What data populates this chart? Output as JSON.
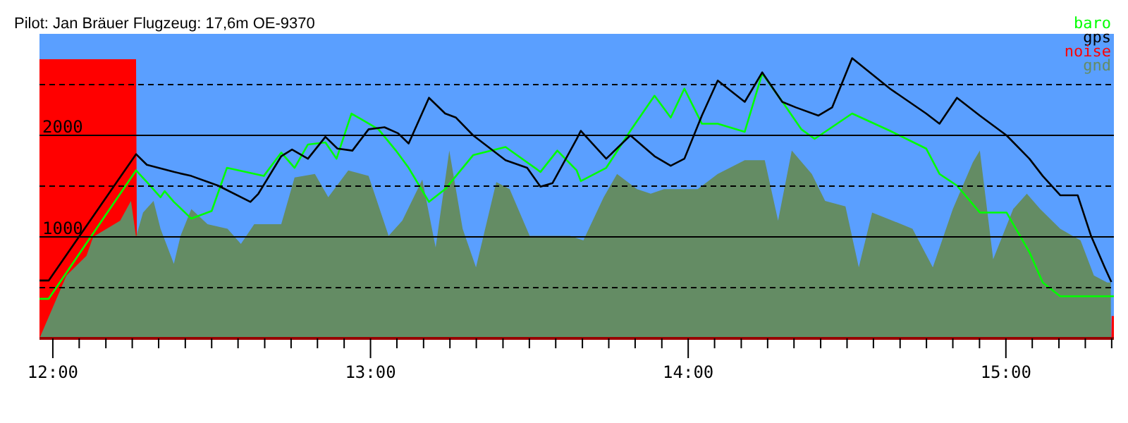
{
  "chart_data": {
    "type": "line",
    "title": "Pilot: Jan Bräuer Flugzeug: 17,6m OE-9370",
    "xlim": [
      11.958,
      15.34
    ],
    "ylim": [
      0,
      3000
    ],
    "xticks": [
      {
        "value": 12,
        "label": "12:00"
      },
      {
        "value": 12.083,
        "label": null
      },
      {
        "value": 12.167,
        "label": null
      },
      {
        "value": 12.25,
        "label": null
      },
      {
        "value": 12.333,
        "label": null
      },
      {
        "value": 12.417,
        "label": null
      },
      {
        "value": 12.5,
        "label": null
      },
      {
        "value": 12.583,
        "label": null
      },
      {
        "value": 12.667,
        "label": null
      },
      {
        "value": 12.75,
        "label": null
      },
      {
        "value": 12.833,
        "label": null
      },
      {
        "value": 12.917,
        "label": null
      },
      {
        "value": 13,
        "label": "13:00"
      },
      {
        "value": 13.083,
        "label": null
      },
      {
        "value": 13.167,
        "label": null
      },
      {
        "value": 13.25,
        "label": null
      },
      {
        "value": 13.333,
        "label": null
      },
      {
        "value": 13.417,
        "label": null
      },
      {
        "value": 13.5,
        "label": null
      },
      {
        "value": 13.583,
        "label": null
      },
      {
        "value": 13.667,
        "label": null
      },
      {
        "value": 13.75,
        "label": null
      },
      {
        "value": 13.833,
        "label": null
      },
      {
        "value": 13.917,
        "label": null
      },
      {
        "value": 14,
        "label": "14:00"
      },
      {
        "value": 14.083,
        "label": null
      },
      {
        "value": 14.167,
        "label": null
      },
      {
        "value": 14.25,
        "label": null
      },
      {
        "value": 14.333,
        "label": null
      },
      {
        "value": 14.417,
        "label": null
      },
      {
        "value": 14.5,
        "label": null
      },
      {
        "value": 14.583,
        "label": null
      },
      {
        "value": 14.667,
        "label": null
      },
      {
        "value": 14.75,
        "label": null
      },
      {
        "value": 14.833,
        "label": null
      },
      {
        "value": 14.917,
        "label": null
      },
      {
        "value": 15,
        "label": "15:00"
      },
      {
        "value": 15.083,
        "label": null
      },
      {
        "value": 15.167,
        "label": null
      },
      {
        "value": 15.25,
        "label": null
      },
      {
        "value": 15.333,
        "label": null
      }
    ],
    "yticks": [
      {
        "value": 500,
        "label": null
      },
      1000,
      {
        "value": 1500,
        "label": null
      },
      2000,
      {
        "value": 2500,
        "label": null
      }
    ],
    "grid": "y",
    "legend": "top right",
    "marker": "none",
    "series": [
      {
        "name": "baro",
        "color": "#00ff00",
        "x": [
          11.958,
          11.987,
          12.262,
          12.296,
          12.339,
          12.352,
          12.381,
          12.436,
          12.5,
          12.548,
          12.664,
          12.719,
          12.761,
          12.803,
          12.858,
          12.893,
          12.94,
          13.025,
          13.08,
          13.12,
          13.184,
          13.235,
          13.323,
          13.425,
          13.535,
          13.588,
          13.649,
          13.662,
          13.742,
          13.818,
          13.894,
          13.945,
          13.988,
          14.043,
          14.093,
          14.178,
          14.233,
          14.301,
          14.356,
          14.398,
          14.516,
          14.635,
          14.749,
          14.791,
          14.846,
          14.918,
          15.002,
          15.074,
          15.116,
          15.171,
          15.226,
          15.268,
          15.311,
          15.325,
          15.34
        ],
        "values": [
          390,
          390,
          1655,
          1540,
          1390,
          1450,
          1345,
          1180,
          1255,
          1680,
          1600,
          1830,
          1680,
          1910,
          1930,
          1770,
          2215,
          2060,
          1850,
          1680,
          1345,
          1470,
          1805,
          1885,
          1640,
          1850,
          1655,
          1550,
          1680,
          2045,
          2390,
          2175,
          2460,
          2115,
          2115,
          2035,
          2610,
          2310,
          2060,
          1965,
          2215,
          2045,
          1870,
          1620,
          1505,
          1240,
          1240,
          850,
          550,
          415,
          415,
          415,
          415,
          415,
          415
        ]
      },
      {
        "name": "gps",
        "color": "#000000",
        "x": [
          11.958,
          11.987,
          12.262,
          12.296,
          12.381,
          12.436,
          12.52,
          12.622,
          12.647,
          12.719,
          12.753,
          12.803,
          12.858,
          12.896,
          12.943,
          12.994,
          13.044,
          13.087,
          13.12,
          13.184,
          13.235,
          13.269,
          13.323,
          13.425,
          13.493,
          13.535,
          13.573,
          13.649,
          13.662,
          13.742,
          13.818,
          13.894,
          13.945,
          13.988,
          14.043,
          14.093,
          14.178,
          14.233,
          14.296,
          14.339,
          14.41,
          14.453,
          14.516,
          14.635,
          14.749,
          14.791,
          14.846,
          14.918,
          15.002,
          15.074,
          15.116,
          15.171,
          15.226,
          15.268,
          15.311,
          15.332
        ],
        "values": [
          570,
          570,
          1815,
          1710,
          1640,
          1600,
          1505,
          1345,
          1425,
          1795,
          1860,
          1770,
          1985,
          1870,
          1850,
          2060,
          2080,
          2020,
          1920,
          2370,
          2215,
          2175,
          2000,
          1755,
          1680,
          1495,
          1530,
          1965,
          2045,
          1770,
          2000,
          1795,
          1700,
          1770,
          2195,
          2540,
          2330,
          2620,
          2330,
          2275,
          2195,
          2275,
          2760,
          2460,
          2215,
          2115,
          2370,
          2195,
          2000,
          1770,
          1600,
          1410,
          1410,
          1010,
          700,
          555
        ]
      },
      {
        "name": "noise",
        "type": "area",
        "color": "#ff0000",
        "x": [
          11.958,
          12.262,
          12.266,
          15.332,
          15.333,
          15.34
        ],
        "values": [
          2750,
          2750,
          0,
          0,
          220,
          220
        ]
      },
      {
        "name": "gnd",
        "type": "area",
        "color": "#648c64",
        "x": [
          11.958,
          12.043,
          12.106,
          12.127,
          12.212,
          12.246,
          12.262,
          12.284,
          12.317,
          12.339,
          12.381,
          12.402,
          12.436,
          12.487,
          12.55,
          12.592,
          12.634,
          12.719,
          12.761,
          12.825,
          12.867,
          12.93,
          12.994,
          13.057,
          13.1,
          13.163,
          13.205,
          13.248,
          13.29,
          13.332,
          13.396,
          13.438,
          13.501,
          13.565,
          13.628,
          13.67,
          13.734,
          13.776,
          13.839,
          13.882,
          13.924,
          13.966,
          14.03,
          14.093,
          14.178,
          14.241,
          14.283,
          14.326,
          14.389,
          14.431,
          14.495,
          14.537,
          14.579,
          14.643,
          14.706,
          14.77,
          14.833,
          14.896,
          14.918,
          14.96,
          15.023,
          15.066,
          15.108,
          15.171,
          15.235,
          15.277,
          15.319,
          15.33,
          15.331,
          15.34
        ],
        "values": [
          0,
          620,
          815,
          1000,
          1160,
          1355,
          1000,
          1240,
          1355,
          1080,
          735,
          1010,
          1275,
          1125,
          1080,
          930,
          1125,
          1125,
          1585,
          1620,
          1390,
          1655,
          1600,
          1010,
          1160,
          1565,
          895,
          1850,
          1080,
          700,
          1540,
          1470,
          1010,
          1010,
          1010,
          965,
          1390,
          1620,
          1470,
          1425,
          1470,
          1470,
          1470,
          1620,
          1755,
          1755,
          1160,
          1850,
          1620,
          1355,
          1300,
          700,
          1240,
          1160,
          1080,
          700,
          1275,
          1735,
          1850,
          780,
          1275,
          1425,
          1275,
          1080,
          965,
          620,
          550,
          550,
          0,
          0
        ]
      }
    ]
  }
}
